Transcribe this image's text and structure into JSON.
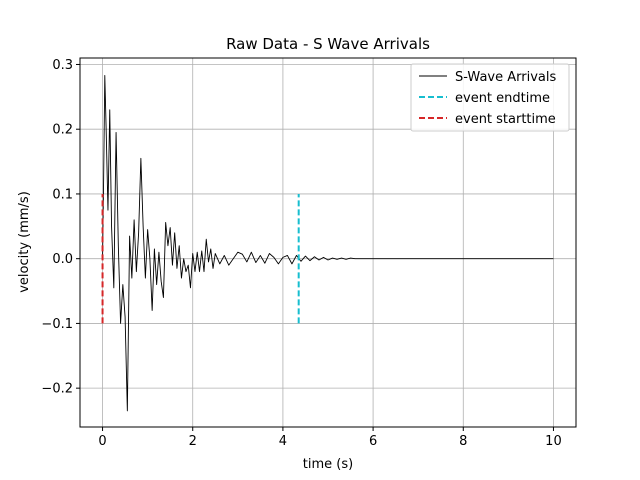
{
  "chart_data": {
    "type": "line",
    "title": "Raw Data - S Wave Arrivals",
    "xlabel": "time (s)",
    "ylabel": "velocity (mm/s)",
    "xlim": [
      -0.5,
      10.5
    ],
    "ylim": [
      -0.26,
      0.31
    ],
    "xticks": [
      0,
      2,
      4,
      6,
      8,
      10
    ],
    "xtick_labels": [
      "0",
      "2",
      "4",
      "6",
      "8",
      "10"
    ],
    "yticks": [
      -0.2,
      -0.1,
      0.0,
      0.1,
      0.2,
      0.3
    ],
    "ytick_labels": [
      "−0.2",
      "−0.1",
      "0.0",
      "0.1",
      "0.2",
      "0.3"
    ],
    "grid": true,
    "legend_position": "top-right",
    "series": [
      {
        "name": "S-Wave Arrivals",
        "color": "#000000",
        "style": "solid",
        "x": [
          0.0,
          0.02,
          0.05,
          0.08,
          0.12,
          0.16,
          0.2,
          0.25,
          0.3,
          0.35,
          0.4,
          0.45,
          0.5,
          0.55,
          0.6,
          0.65,
          0.7,
          0.75,
          0.8,
          0.85,
          0.9,
          0.95,
          1.0,
          1.05,
          1.1,
          1.15,
          1.2,
          1.25,
          1.3,
          1.35,
          1.4,
          1.45,
          1.5,
          1.55,
          1.6,
          1.65,
          1.7,
          1.75,
          1.8,
          1.85,
          1.9,
          1.95,
          2.0,
          2.05,
          2.1,
          2.15,
          2.2,
          2.25,
          2.3,
          2.35,
          2.4,
          2.45,
          2.5,
          2.6,
          2.7,
          2.8,
          2.9,
          3.0,
          3.1,
          3.2,
          3.3,
          3.4,
          3.5,
          3.6,
          3.7,
          3.8,
          3.9,
          4.0,
          4.1,
          4.2,
          4.3,
          4.4,
          4.5,
          4.6,
          4.7,
          4.8,
          4.9,
          5.0,
          5.1,
          5.2,
          5.3,
          5.4,
          5.5,
          5.6,
          5.7,
          5.8,
          5.9,
          6.0,
          6.2,
          6.4,
          6.6,
          6.8,
          7.0,
          7.3,
          7.6,
          8.0,
          8.4,
          8.8,
          9.2,
          9.6,
          10.0
        ],
        "y": [
          0.0,
          0.1,
          0.283,
          0.2,
          0.075,
          0.23,
          0.05,
          -0.045,
          0.195,
          0.02,
          -0.1,
          -0.04,
          -0.09,
          -0.235,
          0.035,
          -0.03,
          0.06,
          -0.02,
          0.04,
          0.155,
          0.05,
          -0.03,
          0.045,
          0.0,
          -0.08,
          0.015,
          -0.04,
          0.01,
          -0.035,
          -0.06,
          0.056,
          0.02,
          0.048,
          -0.01,
          0.04,
          -0.015,
          0.02,
          -0.03,
          0.0,
          -0.02,
          -0.01,
          -0.045,
          0.008,
          -0.02,
          0.01,
          -0.02,
          0.012,
          -0.02,
          0.03,
          -0.005,
          0.015,
          -0.015,
          0.008,
          -0.008,
          0.005,
          -0.01,
          0.0,
          0.01,
          0.007,
          -0.005,
          0.01,
          -0.006,
          0.005,
          -0.007,
          0.008,
          0.002,
          -0.008,
          0.002,
          0.005,
          -0.008,
          0.005,
          -0.004,
          0.004,
          -0.003,
          0.003,
          -0.002,
          0.002,
          -0.002,
          0.001,
          -0.001,
          0.001,
          -0.001,
          0.001,
          0.0,
          0.0,
          0.0,
          0.0,
          0.0,
          0.0,
          0.0,
          0.0,
          0.0,
          0.0,
          0.0,
          0.0,
          0.0,
          0.0,
          0.0,
          0.0,
          0.0,
          0.0
        ]
      },
      {
        "name": "event endtime",
        "color": "#17becf",
        "style": "dashed",
        "x": [
          4.35,
          4.35
        ],
        "y": [
          -0.1,
          0.1
        ]
      },
      {
        "name": "event starttime",
        "color": "#d62728",
        "style": "dashed",
        "x": [
          0.0,
          0.0
        ],
        "y": [
          -0.1,
          0.1
        ]
      }
    ]
  }
}
